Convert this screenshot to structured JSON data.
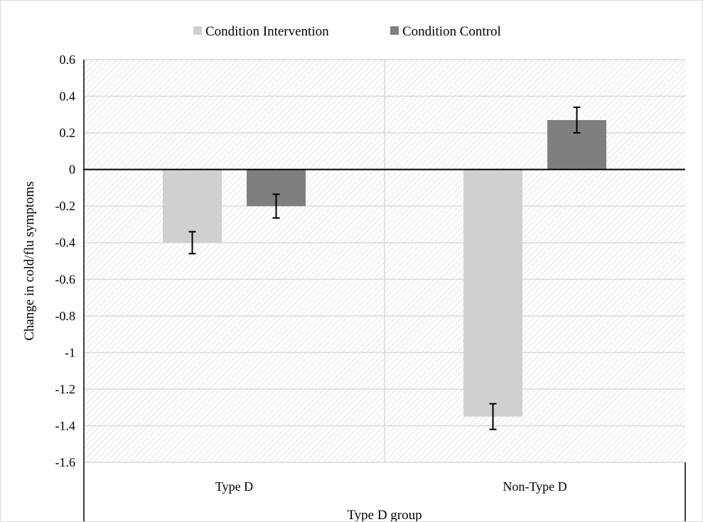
{
  "chart_data": {
    "type": "bar",
    "categories": [
      "Type D",
      "Non-Type D"
    ],
    "series": [
      {
        "name": "Condition Intervention",
        "values": [
          -0.4,
          -1.35
        ],
        "error": [
          0.06,
          0.07
        ]
      },
      {
        "name": "Condition Control",
        "values": [
          -0.2,
          0.27
        ],
        "error": [
          0.065,
          0.07
        ]
      }
    ],
    "xlabel": "Type D group",
    "ylabel": "Change in cold/flu symptoms",
    "ylim": [
      -1.6,
      0.6
    ],
    "yticks": [
      0.6,
      0.4,
      0.2,
      0,
      -0.2,
      -0.4,
      -0.6,
      -0.8,
      -1,
      -1.2,
      -1.4,
      -1.6
    ],
    "ytick_labels": [
      "0.6",
      "0.4",
      "0.2",
      "0",
      "-0.2",
      "-0.4",
      "-0.6",
      "-0.8",
      "-1",
      "-1.2",
      "-1.4",
      "-1.6"
    ],
    "grid": true,
    "legend_position": "top",
    "colors": {
      "Condition Intervention": "#d0d0d0",
      "Condition Control": "#7f7f7f",
      "hatch": "#d2d2d2",
      "grid": "#d9d9d9"
    }
  }
}
